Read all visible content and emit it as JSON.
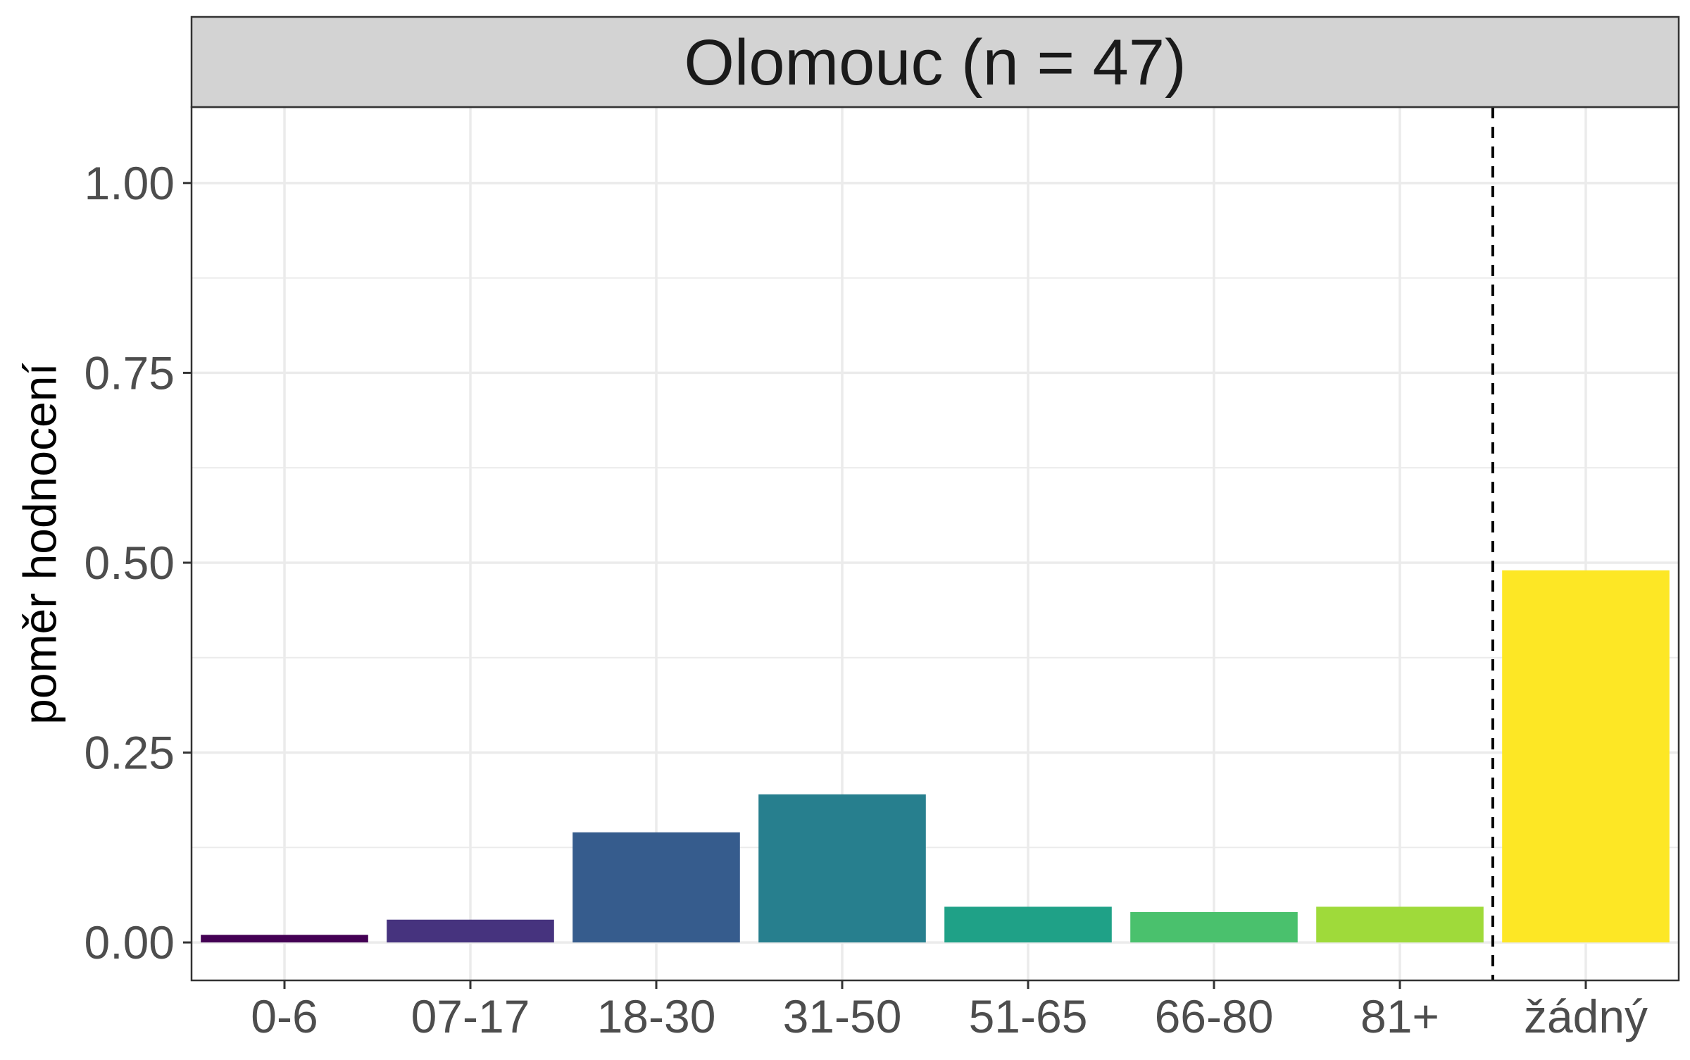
{
  "chart_data": {
    "type": "bar",
    "title": "Olomouc (n = 47)",
    "xlabel": "",
    "ylabel": "poměr hodnocení",
    "ylim": [
      -0.05,
      1.1
    ],
    "yticks": [
      0.0,
      0.25,
      0.5,
      0.75,
      1.0
    ],
    "ytick_labels": [
      "0.00",
      "0.25",
      "0.50",
      "0.75",
      "1.00"
    ],
    "categories": [
      "0-6",
      "07-17",
      "18-30",
      "31-50",
      "51-65",
      "66-80",
      "81+",
      "žádný"
    ],
    "values": [
      0.01,
      0.03,
      0.145,
      0.195,
      0.047,
      0.04,
      0.047,
      0.49
    ],
    "colors": [
      "#440154",
      "#46337E",
      "#365C8D",
      "#277F8E",
      "#1FA187",
      "#4AC16D",
      "#9FDA3A",
      "#FDE725"
    ],
    "reference_line": {
      "position_between": [
        "81+",
        "žádný"
      ],
      "style": "dashed",
      "color": "#000000"
    },
    "grid": true,
    "legend": "none",
    "strip_fill": "#d3d3d3"
  }
}
